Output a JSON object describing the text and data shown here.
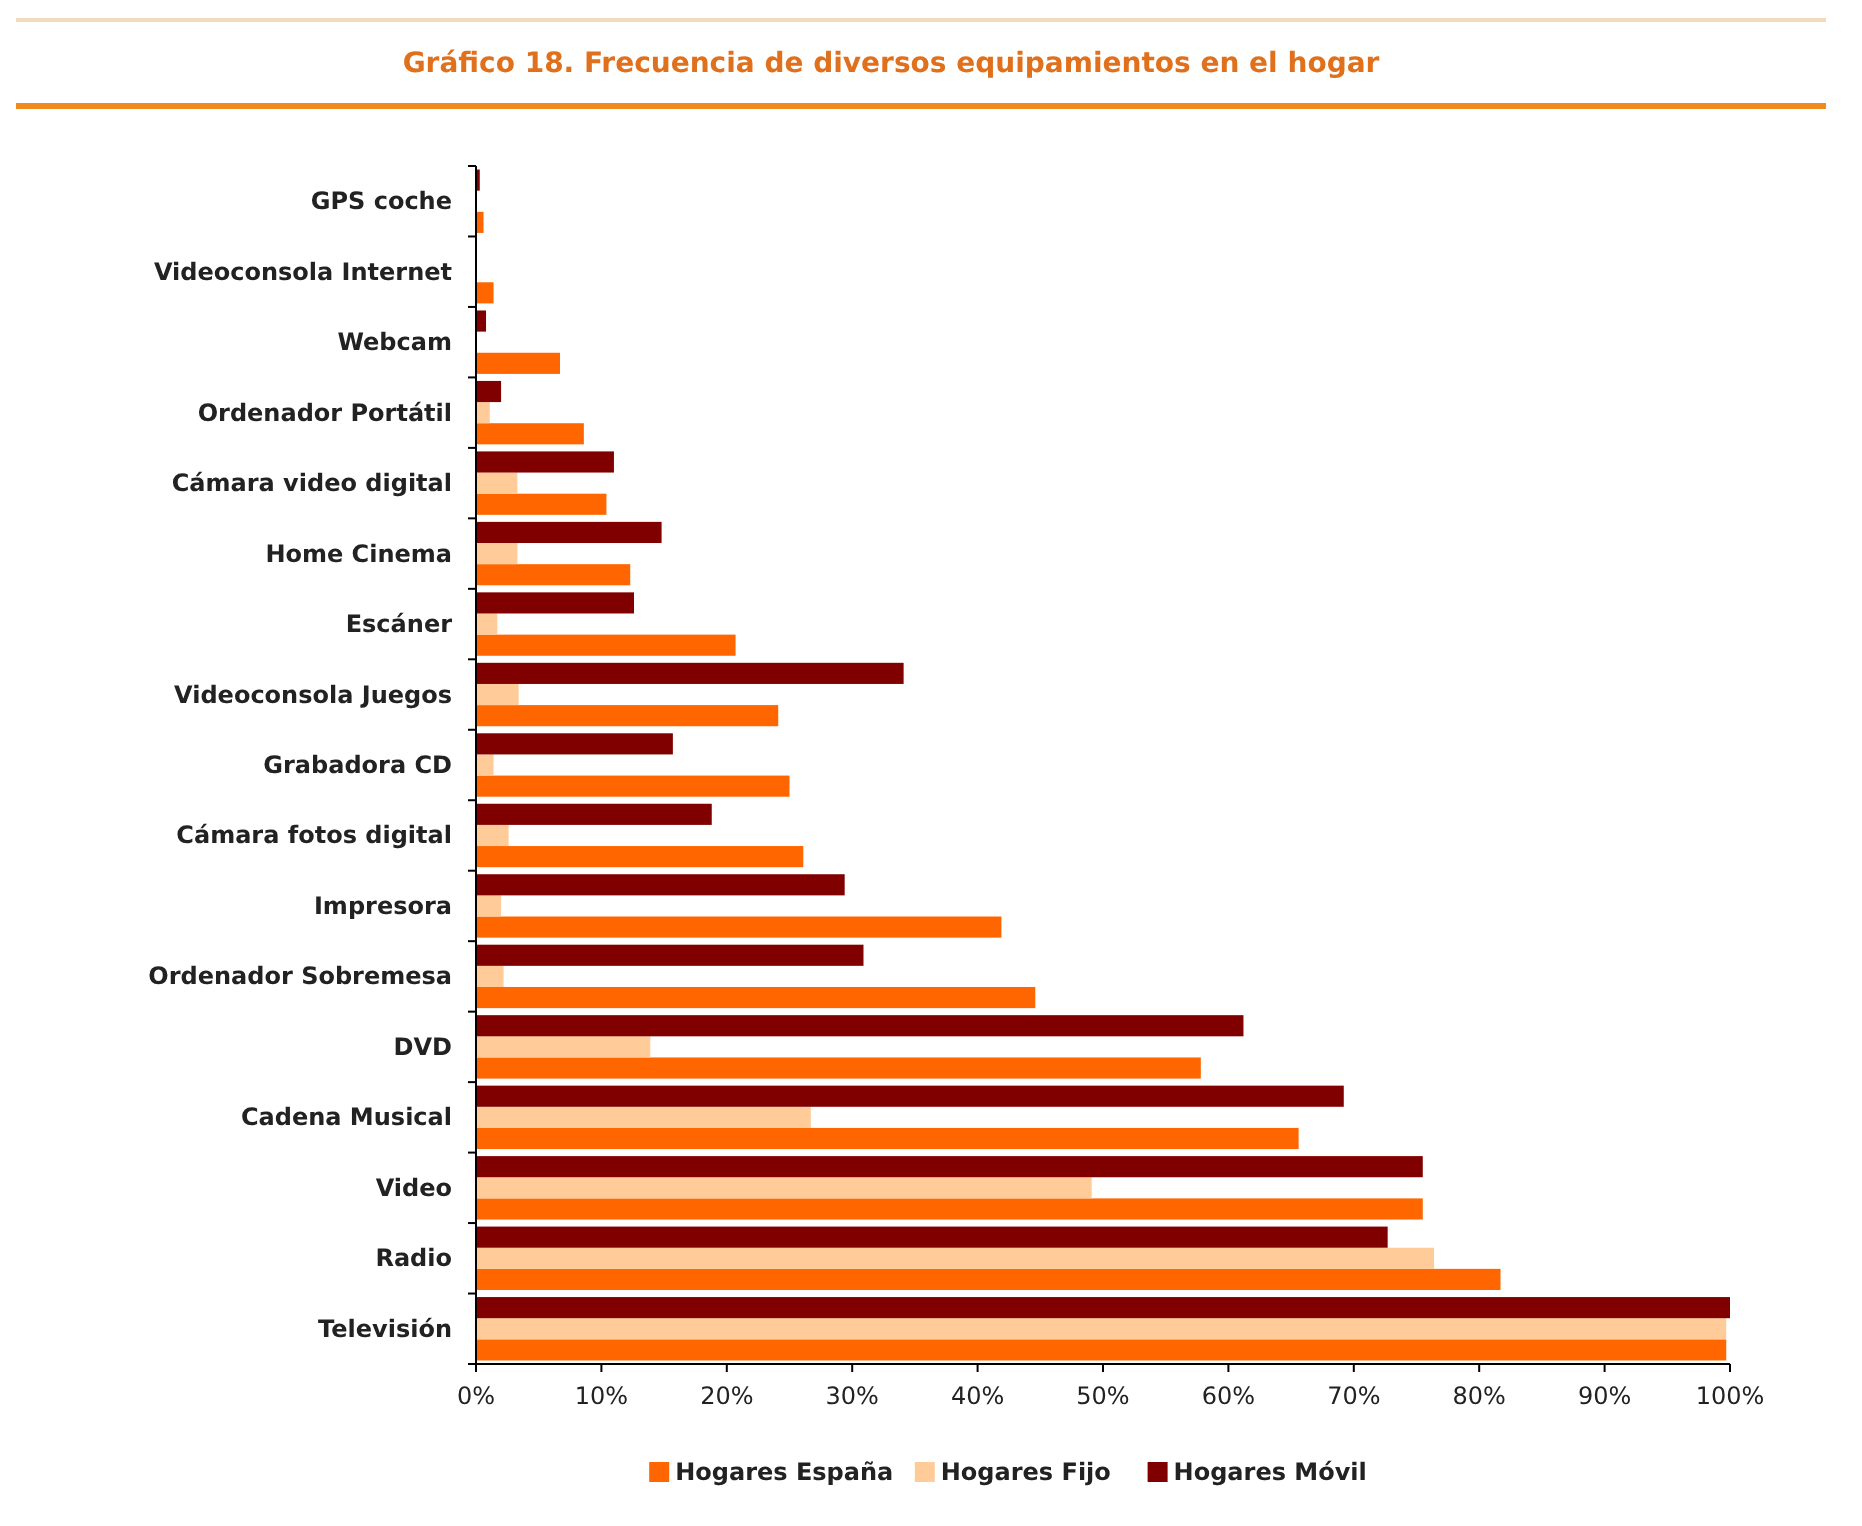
{
  "chart_data": {
    "type": "bar",
    "orientation": "horizontal",
    "title": "Gráfico 18. Frecuencia de diversos equipamientos en el hogar",
    "categories": [
      "GPS coche",
      "Videoconsola Internet",
      "Webcam",
      "Ordenador Portátil",
      "Cámara video digital",
      "Home Cinema",
      "Escáner",
      "Videoconsola Juegos",
      "Grabadora CD",
      "Cámara fotos digital",
      "Impresora",
      "Ordenador Sobremesa",
      "DVD",
      "Cadena Musical",
      "Video",
      "Radio",
      "Televisión"
    ],
    "series": [
      {
        "name": "Hogares España",
        "color": "#ff6600",
        "values": [
          0.6,
          1.4,
          6.7,
          8.6,
          10.4,
          12.3,
          20.7,
          24.1,
          25.0,
          26.1,
          41.9,
          44.6,
          57.8,
          65.6,
          75.5,
          81.7,
          99.7
        ]
      },
      {
        "name": "Hogares Fijo",
        "color": "#ffcc99",
        "values": [
          0,
          0,
          0,
          1.1,
          3.3,
          3.3,
          1.7,
          3.4,
          1.4,
          2.6,
          2.0,
          2.2,
          13.9,
          26.7,
          49.1,
          76.4,
          99.7
        ]
      },
      {
        "name": "Hogares Móvil",
        "color": "#800000",
        "values": [
          0.3,
          0,
          0.8,
          2.0,
          11.0,
          14.8,
          12.6,
          34.1,
          15.7,
          18.8,
          29.4,
          30.9,
          61.2,
          69.2,
          75.5,
          72.7,
          100
        ]
      }
    ],
    "xlim": [
      0,
      100
    ],
    "xticks": [
      {
        "value": 0,
        "label": "0%"
      },
      {
        "value": 10,
        "label": "10%"
      },
      {
        "value": 20,
        "label": "20%"
      },
      {
        "value": 30,
        "label": "30%"
      },
      {
        "value": 40,
        "label": "40%"
      },
      {
        "value": 50,
        "label": "50%"
      },
      {
        "value": 60,
        "label": "60%"
      },
      {
        "value": 70,
        "label": "70%"
      },
      {
        "value": 80,
        "label": "80%"
      },
      {
        "value": 90,
        "label": "90%"
      },
      {
        "value": 100,
        "label": "100%"
      }
    ],
    "grid": false,
    "legend": "bottom"
  }
}
